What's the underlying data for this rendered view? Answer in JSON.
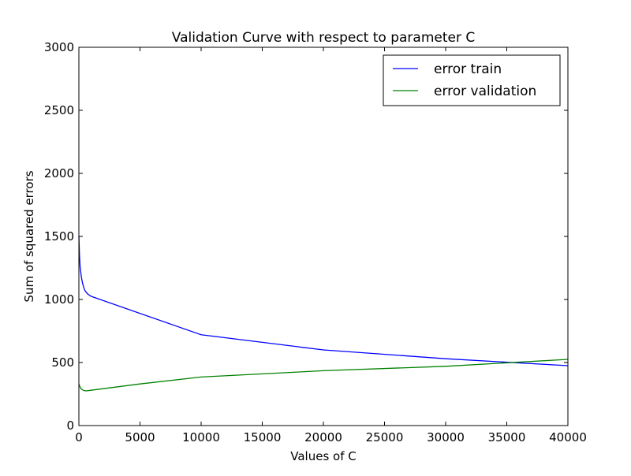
{
  "chart_data": {
    "type": "line",
    "title": "Validation Curve with respect to parameter C",
    "xlabel": "Values of C",
    "ylabel": "Sum of squared errors",
    "xlim": [
      0,
      40000
    ],
    "ylim": [
      0,
      3000
    ],
    "xticks": [
      0,
      5000,
      10000,
      15000,
      20000,
      25000,
      30000,
      35000,
      40000
    ],
    "yticks": [
      0,
      500,
      1000,
      1500,
      2000,
      2500,
      3000
    ],
    "grid": false,
    "legend_position": "top-right",
    "series": [
      {
        "name": "error train",
        "color": "#0000ff",
        "x": [
          1,
          50,
          100,
          200,
          300,
          400,
          500,
          700,
          1000,
          10000,
          20000,
          30000,
          40000
        ],
        "y": [
          1500,
          1350,
          1260,
          1180,
          1130,
          1095,
          1070,
          1045,
          1025,
          720,
          600,
          530,
          475
        ]
      },
      {
        "name": "error validation",
        "color": "#008000",
        "x": [
          1,
          100,
          200,
          400,
          600,
          1000,
          5000,
          10000,
          20000,
          30000,
          40000
        ],
        "y": [
          330,
          305,
          290,
          278,
          275,
          280,
          330,
          385,
          435,
          470,
          525
        ]
      }
    ]
  }
}
